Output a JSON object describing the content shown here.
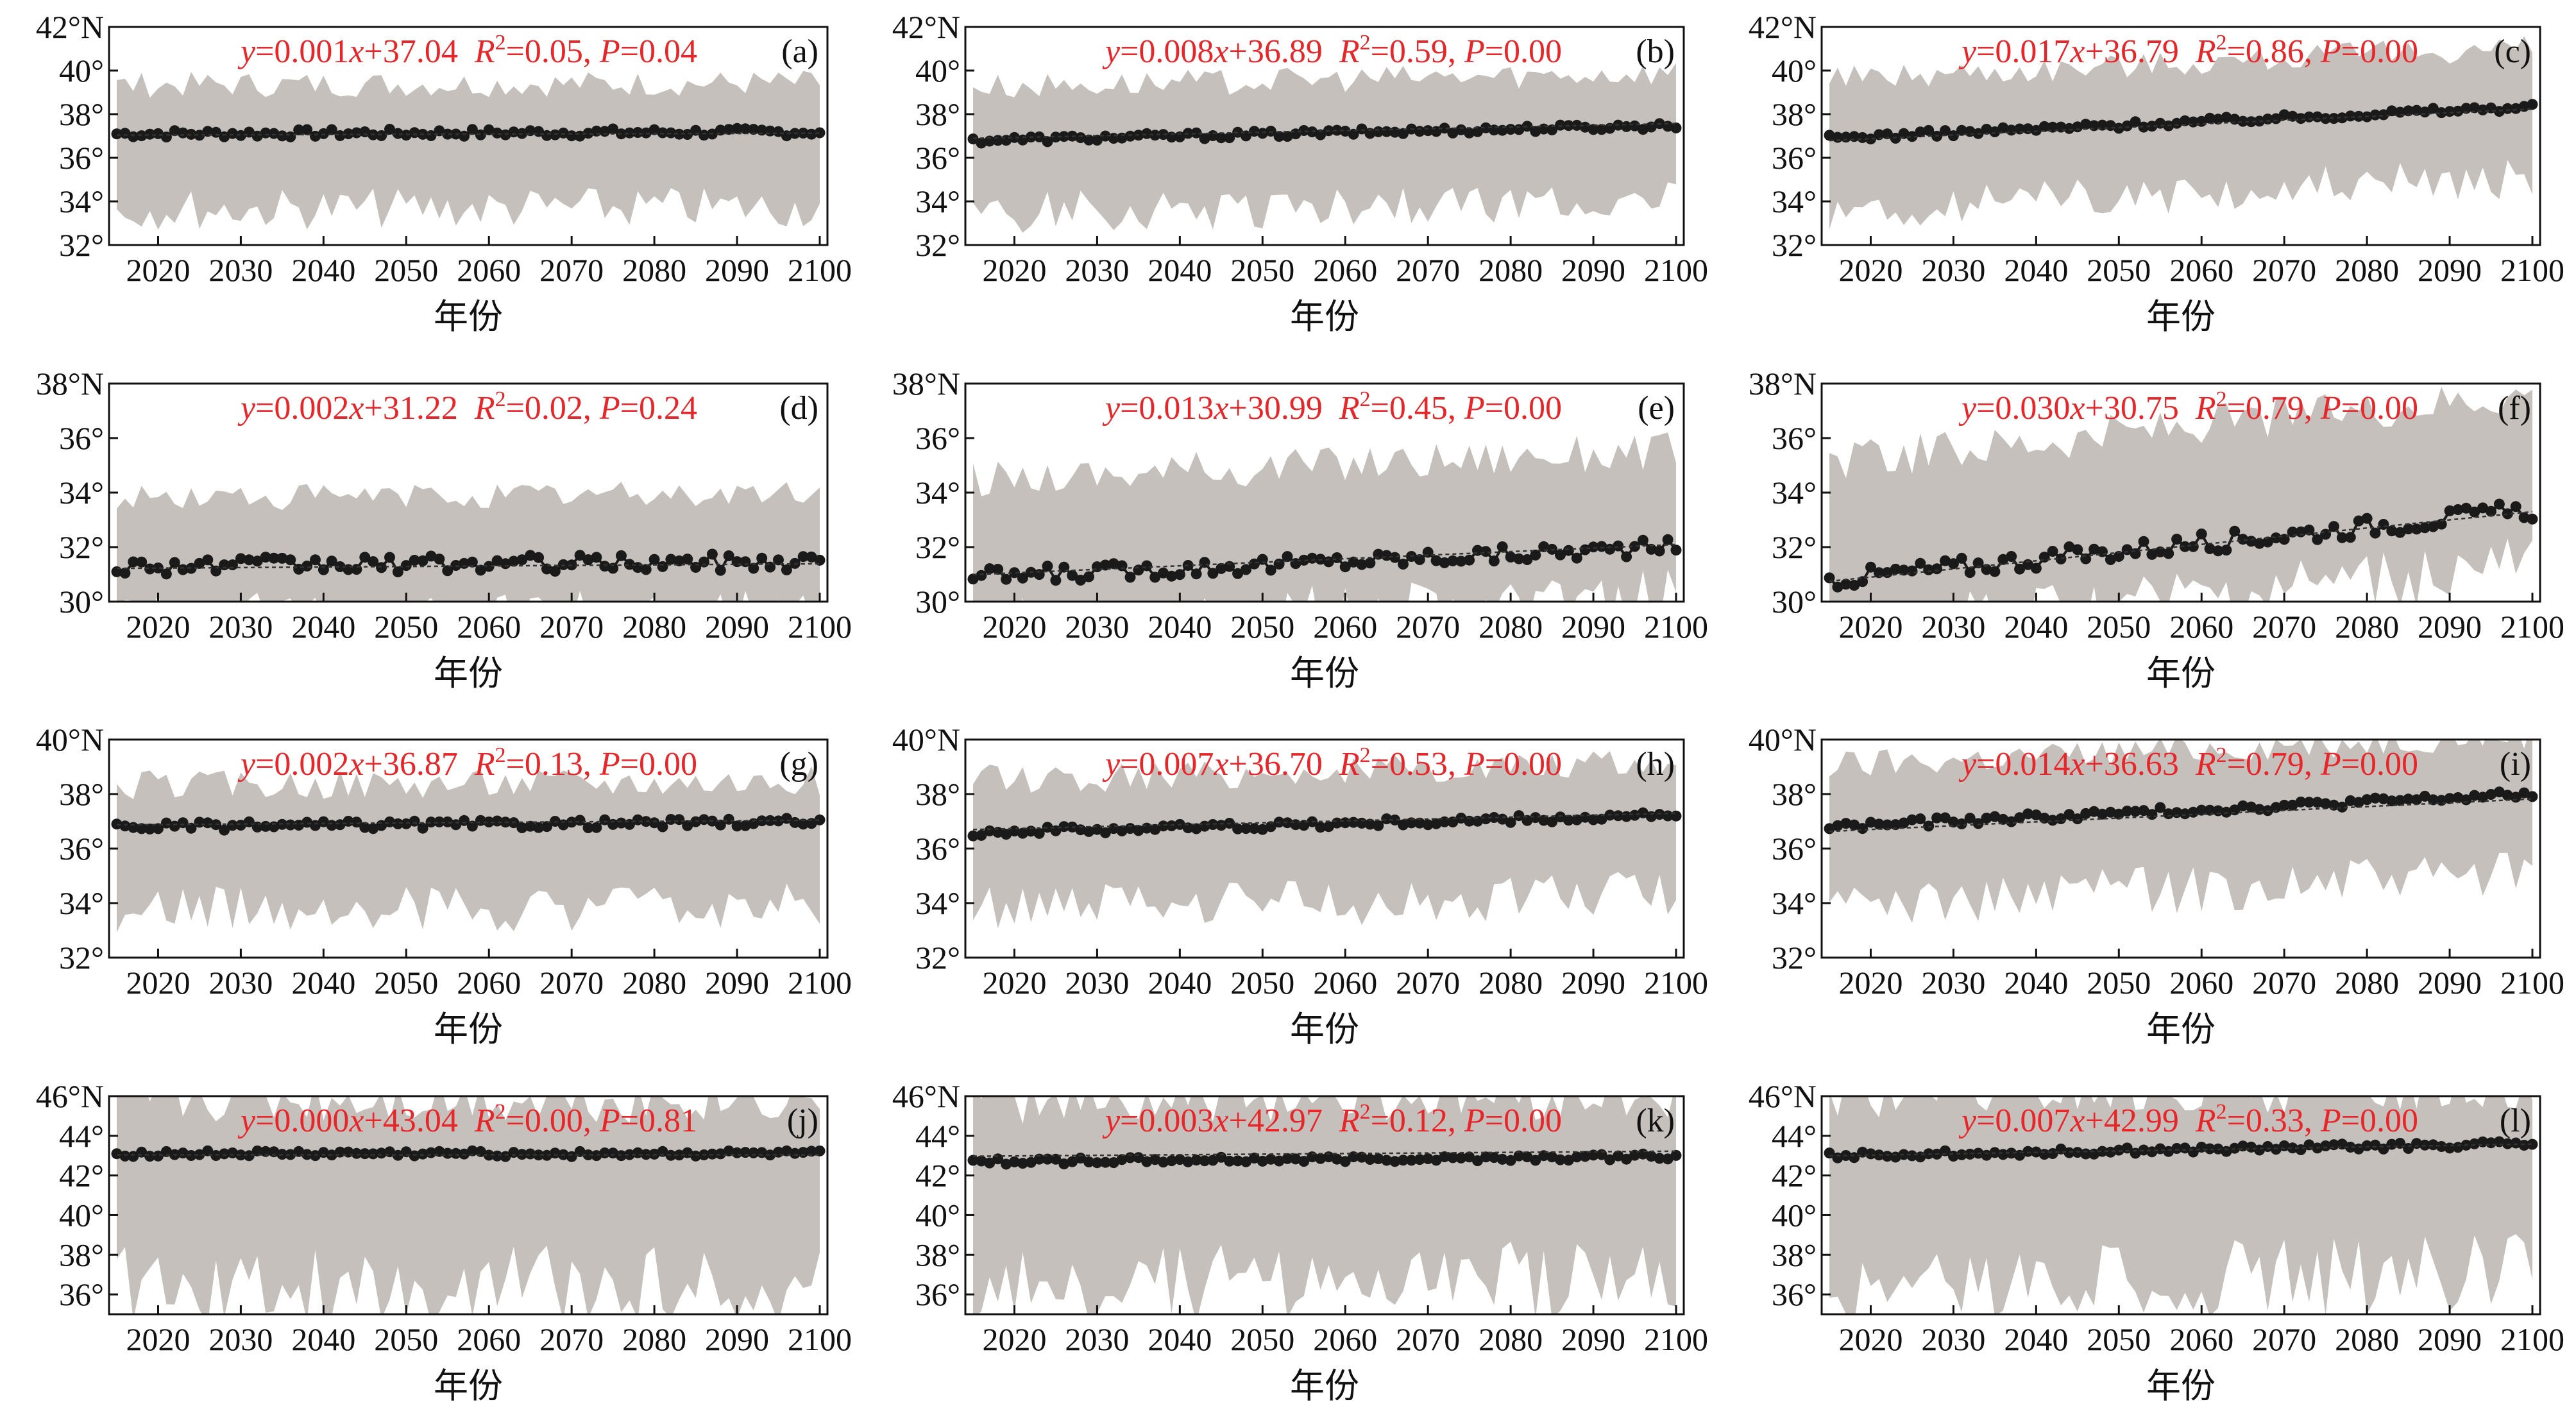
{
  "figure": {
    "band_color": "#c6c0bd",
    "line_color": "#1a1a1a",
    "equation_color": "#e8262a"
  },
  "chart_data": [
    {
      "label": "(a)",
      "type": "line",
      "xlabel": "年份",
      "ylabel": "",
      "x_range": [
        2015,
        2100
      ],
      "ylim": [
        32,
        42
      ],
      "ytick_values": [
        32,
        34,
        36,
        38,
        40,
        42
      ],
      "ytick_labels": [
        "32°",
        "34°",
        "36°",
        "38°",
        "40°",
        "42°N"
      ],
      "xtick_values": [
        2020,
        2030,
        2040,
        2050,
        2060,
        2070,
        2080,
        2090,
        2100
      ],
      "xtick_labels": [
        "2020",
        "2030",
        "2040",
        "2050",
        "2060",
        "2070",
        "2080",
        "2090",
        "2100"
      ],
      "equation": {
        "y": "y",
        "eq": "=0.001",
        "x": "x",
        "rest": "+37.04",
        "r": "R",
        "sup": "2",
        "rval": "=0.05, ",
        "p": "P",
        "pval": "=0.04"
      },
      "slope": 0.001,
      "intercept": 37.04,
      "mean_start": 37.1,
      "jitter": 0.18,
      "band": [
        34.6,
        39.1
      ],
      "band_var": 1.2,
      "trend_line": true
    },
    {
      "label": "(b)",
      "type": "line",
      "xlabel": "年份",
      "ylabel": "",
      "x_range": [
        2015,
        2100
      ],
      "ylim": [
        32,
        42
      ],
      "ytick_values": [
        32,
        34,
        36,
        38,
        40,
        42
      ],
      "ytick_labels": [
        "32°",
        "34°",
        "36°",
        "38°",
        "40°",
        "42°N"
      ],
      "xtick_values": [
        2020,
        2030,
        2040,
        2050,
        2060,
        2070,
        2080,
        2090,
        2100
      ],
      "xtick_labels": [
        "2020",
        "2030",
        "2040",
        "2050",
        "2060",
        "2070",
        "2080",
        "2090",
        "2100"
      ],
      "equation": {
        "y": "y",
        "eq": "=0.008",
        "x": "x",
        "rest": "+36.89",
        "r": "R",
        "sup": "2",
        "rval": "=0.59, ",
        "p": "P",
        "pval": "=0.00"
      },
      "slope": 0.008,
      "intercept": 36.89,
      "mean_start": 36.8,
      "jitter": 0.15,
      "band": [
        34.4,
        39.0
      ],
      "band_var": 1.2,
      "trend_line": true
    },
    {
      "label": "(c)",
      "type": "line",
      "xlabel": "年份",
      "ylabel": "",
      "x_range": [
        2015,
        2100
      ],
      "ylim": [
        32,
        42
      ],
      "ytick_values": [
        32,
        34,
        36,
        38,
        40,
        42
      ],
      "ytick_labels": [
        "32°",
        "34°",
        "36°",
        "38°",
        "40°",
        "42°N"
      ],
      "xtick_values": [
        2020,
        2030,
        2040,
        2050,
        2060,
        2070,
        2080,
        2090,
        2100
      ],
      "xtick_labels": [
        "2020",
        "2030",
        "2040",
        "2050",
        "2060",
        "2070",
        "2080",
        "2090",
        "2100"
      ],
      "equation": {
        "y": "y",
        "eq": "=0.017",
        "x": "x",
        "rest": "+36.79",
        "r": "R",
        "sup": "2",
        "rval": "=0.86, ",
        "p": "P",
        "pval": "=0.00"
      },
      "slope": 0.017,
      "intercept": 36.79,
      "mean_start": 36.9,
      "jitter": 0.15,
      "band": [
        34.6,
        39.4
      ],
      "band_var": 1.2,
      "trend_line": true
    },
    {
      "label": "(d)",
      "type": "line",
      "xlabel": "年份",
      "ylabel": "",
      "x_range": [
        2015,
        2100
      ],
      "ylim": [
        30,
        38
      ],
      "ytick_values": [
        30,
        32,
        34,
        36,
        38
      ],
      "ytick_labels": [
        "30°",
        "32°",
        "34°",
        "36°",
        "38°N"
      ],
      "xtick_values": [
        2020,
        2030,
        2040,
        2050,
        2060,
        2070,
        2080,
        2090,
        2100
      ],
      "xtick_labels": [
        "2020",
        "2030",
        "2040",
        "2050",
        "2060",
        "2070",
        "2080",
        "2090",
        "2100"
      ],
      "equation": {
        "y": "y",
        "eq": "=0.002",
        "x": "x",
        "rest": "+31.22",
        "r": "R",
        "sup": "2",
        "rval": "=0.02, ",
        "p": "P",
        "pval": "=0.24"
      },
      "slope": 0.002,
      "intercept": 31.22,
      "mean_start": 31.3,
      "jitter": 0.3,
      "band": [
        30.3,
        33.6
      ],
      "band_var": 1.0,
      "trend_line": true
    },
    {
      "label": "(e)",
      "type": "line",
      "xlabel": "年份",
      "ylabel": "",
      "x_range": [
        2015,
        2100
      ],
      "ylim": [
        30,
        38
      ],
      "ytick_values": [
        30,
        32,
        34,
        36,
        38
      ],
      "ytick_labels": [
        "30°",
        "32°",
        "34°",
        "36°",
        "38°N"
      ],
      "xtick_values": [
        2020,
        2030,
        2040,
        2050,
        2060,
        2070,
        2080,
        2090,
        2100
      ],
      "xtick_labels": [
        "2020",
        "2030",
        "2040",
        "2050",
        "2060",
        "2070",
        "2080",
        "2090",
        "2100"
      ],
      "equation": {
        "y": "y",
        "eq": "=0.013",
        "x": "x",
        "rest": "+30.99",
        "r": "R",
        "sup": "2",
        "rval": "=0.45, ",
        "p": "P",
        "pval": "=0.00"
      },
      "slope": 0.013,
      "intercept": 30.99,
      "mean_start": 30.9,
      "jitter": 0.3,
      "band": [
        30.1,
        34.2
      ],
      "band_var": 1.4,
      "trend_line": true
    },
    {
      "label": "(f)",
      "type": "line",
      "xlabel": "年份",
      "ylabel": "",
      "x_range": [
        2015,
        2100
      ],
      "ylim": [
        30,
        38
      ],
      "ytick_values": [
        30,
        32,
        34,
        36,
        38
      ],
      "ytick_labels": [
        "30°",
        "32°",
        "34°",
        "36°",
        "38°N"
      ],
      "xtick_values": [
        2020,
        2030,
        2040,
        2050,
        2060,
        2070,
        2080,
        2090,
        2100
      ],
      "xtick_labels": [
        "2020",
        "2030",
        "2040",
        "2050",
        "2060",
        "2070",
        "2080",
        "2090",
        "2100"
      ],
      "equation": {
        "y": "y",
        "eq": "=0.030",
        "x": "x",
        "rest": "+30.75",
        "r": "R",
        "sup": "2",
        "rval": "=0.79, ",
        "p": "P",
        "pval": "=0.00"
      },
      "slope": 0.03,
      "intercept": 30.75,
      "mean_start": 30.8,
      "jitter": 0.35,
      "band": [
        30.0,
        34.8
      ],
      "band_var": 1.5,
      "trend_line": true
    },
    {
      "label": "(g)",
      "type": "line",
      "xlabel": "年份",
      "ylabel": "",
      "x_range": [
        2015,
        2100
      ],
      "ylim": [
        32,
        40
      ],
      "ytick_values": [
        32,
        34,
        36,
        38,
        40
      ],
      "ytick_labels": [
        "32°",
        "34°",
        "36°",
        "38°",
        "40°N"
      ],
      "xtick_values": [
        2020,
        2030,
        2040,
        2050,
        2060,
        2070,
        2080,
        2090,
        2100
      ],
      "xtick_labels": [
        "2020",
        "2030",
        "2040",
        "2050",
        "2060",
        "2070",
        "2080",
        "2090",
        "2100"
      ],
      "equation": {
        "y": "y",
        "eq": "=0.002",
        "x": "x",
        "rest": "+36.87",
        "r": "R",
        "sup": "2",
        "rval": "=0.13, ",
        "p": "P",
        "pval": "=0.00"
      },
      "slope": 0.002,
      "intercept": 36.87,
      "mean_start": 36.8,
      "jitter": 0.15,
      "band": [
        34.6,
        38.1
      ],
      "band_var": 1.1,
      "trend_line": true
    },
    {
      "label": "(h)",
      "type": "line",
      "xlabel": "年份",
      "ylabel": "",
      "x_range": [
        2015,
        2100
      ],
      "ylim": [
        32,
        40
      ],
      "ytick_values": [
        32,
        34,
        36,
        38,
        40
      ],
      "ytick_labels": [
        "32°",
        "34°",
        "36°",
        "38°",
        "40°N"
      ],
      "xtick_values": [
        2020,
        2030,
        2040,
        2050,
        2060,
        2070,
        2080,
        2090,
        2100
      ],
      "xtick_labels": [
        "2020",
        "2030",
        "2040",
        "2050",
        "2060",
        "2070",
        "2080",
        "2090",
        "2100"
      ],
      "equation": {
        "y": "y",
        "eq": "=0.007",
        "x": "x",
        "rest": "+36.70",
        "r": "R",
        "sup": "2",
        "rval": "=0.53, ",
        "p": "P",
        "pval": "=0.00"
      },
      "slope": 0.007,
      "intercept": 36.7,
      "mean_start": 36.6,
      "jitter": 0.15,
      "band": [
        34.6,
        38.3
      ],
      "band_var": 1.1,
      "trend_line": true
    },
    {
      "label": "(i)",
      "type": "line",
      "xlabel": "年份",
      "ylabel": "",
      "x_range": [
        2015,
        2100
      ],
      "ylim": [
        32,
        40
      ],
      "ytick_values": [
        32,
        34,
        36,
        38,
        40
      ],
      "ytick_labels": [
        "32°",
        "34°",
        "36°",
        "38°",
        "40°N"
      ],
      "xtick_values": [
        2020,
        2030,
        2040,
        2050,
        2060,
        2070,
        2080,
        2090,
        2100
      ],
      "xtick_labels": [
        "2020",
        "2030",
        "2040",
        "2050",
        "2060",
        "2070",
        "2080",
        "2090",
        "2100"
      ],
      "equation": {
        "y": "y",
        "eq": "=0.014",
        "x": "x",
        "rest": "+36.63",
        "r": "R",
        "sup": "2",
        "rval": "=0.79, ",
        "p": "P",
        "pval": "=0.00"
      },
      "slope": 0.014,
      "intercept": 36.63,
      "mean_start": 36.8,
      "jitter": 0.15,
      "band": [
        34.8,
        38.8
      ],
      "band_var": 1.1,
      "trend_line": true
    },
    {
      "label": "(j)",
      "type": "line",
      "xlabel": "年份",
      "ylabel": "",
      "x_range": [
        2015,
        2100
      ],
      "ylim": [
        35,
        46
      ],
      "ytick_values": [
        36,
        38,
        40,
        42,
        44,
        46
      ],
      "ytick_labels": [
        "36°",
        "38°",
        "40°",
        "42°",
        "44°",
        "46°N"
      ],
      "xtick_values": [
        2020,
        2030,
        2040,
        2050,
        2060,
        2070,
        2080,
        2090,
        2100
      ],
      "xtick_labels": [
        "2020",
        "2030",
        "2040",
        "2050",
        "2060",
        "2070",
        "2080",
        "2090",
        "2100"
      ],
      "equation": {
        "y": "y",
        "eq": "=0.000",
        "x": "x",
        "rest": "+43.04",
        "r": "R",
        "sup": "2",
        "rval": "=0.00, ",
        "p": "P",
        "pval": "=0.81"
      },
      "slope": 0.0,
      "intercept": 43.04,
      "mean_start": 43.1,
      "jitter": 0.15,
      "band": [
        38.5,
        45.3
      ],
      "band_var": 2.5,
      "trend_line": true
    },
    {
      "label": "(k)",
      "type": "line",
      "xlabel": "年份",
      "ylabel": "",
      "x_range": [
        2015,
        2100
      ],
      "ylim": [
        35,
        46
      ],
      "ytick_values": [
        36,
        38,
        40,
        42,
        44,
        46
      ],
      "ytick_labels": [
        "36°",
        "38°",
        "40°",
        "42°",
        "44°",
        "46°N"
      ],
      "xtick_values": [
        2020,
        2030,
        2040,
        2050,
        2060,
        2070,
        2080,
        2090,
        2100
      ],
      "xtick_labels": [
        "2020",
        "2030",
        "2040",
        "2050",
        "2060",
        "2070",
        "2080",
        "2090",
        "2100"
      ],
      "equation": {
        "y": "y",
        "eq": "=0.003",
        "x": "x",
        "rest": "+42.97",
        "r": "R",
        "sup": "2",
        "rval": "=0.12, ",
        "p": "P",
        "pval": "=0.00"
      },
      "slope": 0.003,
      "intercept": 42.97,
      "mean_start": 42.7,
      "jitter": 0.15,
      "band": [
        38.5,
        45.3
      ],
      "band_var": 2.5,
      "trend_line": true
    },
    {
      "label": "(l)",
      "type": "line",
      "xlabel": "年份",
      "ylabel": "",
      "x_range": [
        2015,
        2100
      ],
      "ylim": [
        35,
        46
      ],
      "ytick_values": [
        36,
        38,
        40,
        42,
        44,
        46
      ],
      "ytick_labels": [
        "36°",
        "38°",
        "40°",
        "42°",
        "44°",
        "46°N"
      ],
      "xtick_values": [
        2020,
        2030,
        2040,
        2050,
        2060,
        2070,
        2080,
        2090,
        2100
      ],
      "xtick_labels": [
        "2020",
        "2030",
        "2040",
        "2050",
        "2060",
        "2070",
        "2080",
        "2090",
        "2100"
      ],
      "equation": {
        "y": "y",
        "eq": "=0.007",
        "x": "x",
        "rest": "+42.99",
        "r": "R",
        "sup": "2",
        "rval": "=0.33, ",
        "p": "P",
        "pval": "=0.00"
      },
      "slope": 0.007,
      "intercept": 42.99,
      "mean_start": 43.0,
      "jitter": 0.15,
      "band": [
        38.5,
        45.5
      ],
      "band_var": 2.5,
      "trend_line": true
    }
  ]
}
